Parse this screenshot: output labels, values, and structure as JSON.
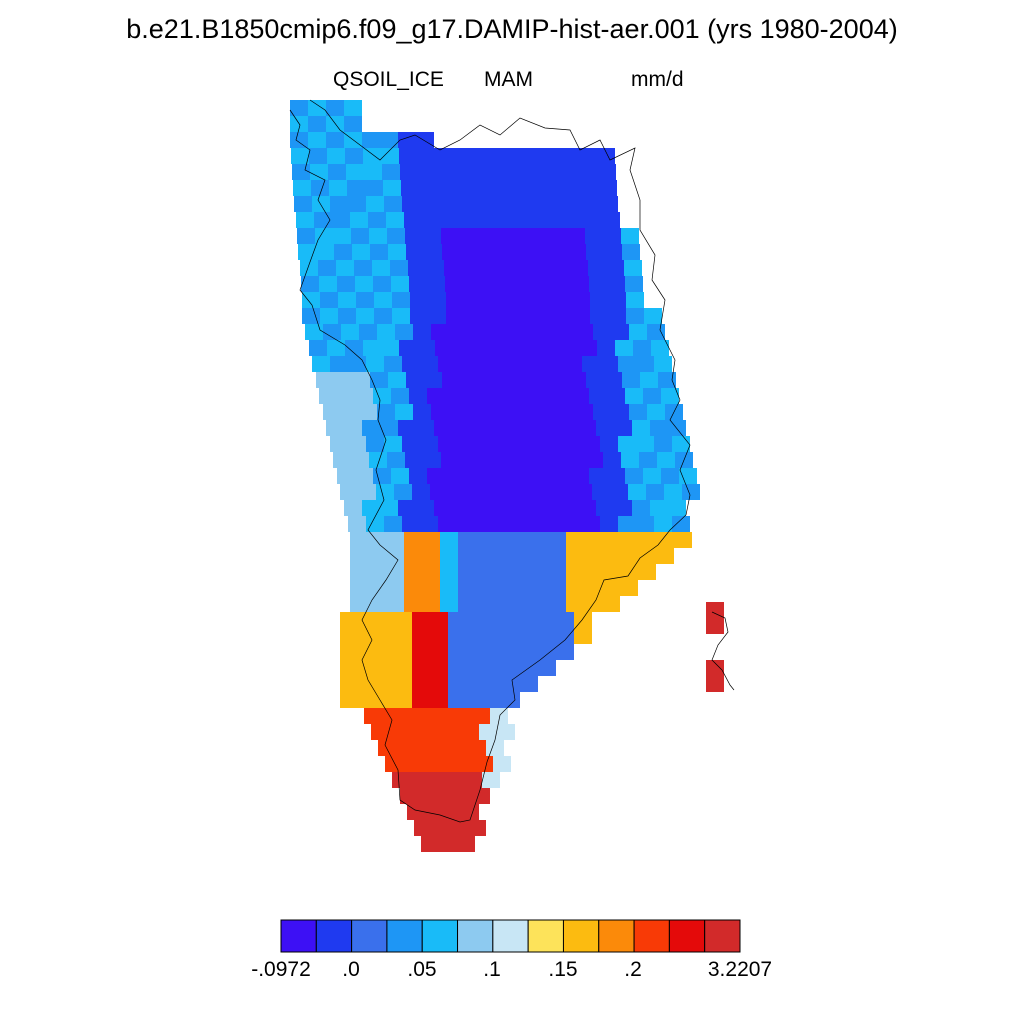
{
  "title": "b.e21.B1850cmip6.f09_g17.DAMIP-hist-aer.001 (yrs 1980-2004)",
  "subtitle": {
    "variable": "QSOIL_ICE",
    "season": "MAM",
    "units": "mm/d"
  },
  "colorbar": {
    "colors": [
      "#3d10f5",
      "#1f3af0",
      "#3a70ec",
      "#1e96f5",
      "#19bbf8",
      "#8dcaf0",
      "#c8e6f5",
      "#fde35a",
      "#fcbb10",
      "#fb8a0a",
      "#f83a06",
      "#e40a0a",
      "#d22a2a"
    ],
    "labels": [
      "-.0972",
      ".0",
      ".05",
      ".1",
      ".15",
      ".2",
      "3.2207"
    ]
  },
  "map": {
    "region": "Greenland",
    "colormap_classes": 13
  }
}
